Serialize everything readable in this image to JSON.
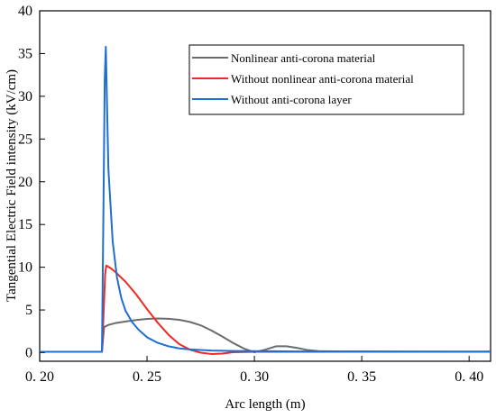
{
  "chart_data": {
    "type": "line",
    "title": "",
    "xlabel": "Arc length (m)",
    "ylabel": "Tangential Electric Field intensity (kV/cm)",
    "xlim": [
      0.2,
      0.41
    ],
    "ylim": [
      -1,
      40
    ],
    "xticks": [
      0.2,
      0.25,
      0.3,
      0.35,
      0.4
    ],
    "xtick_labels": [
      "0. 20",
      "0. 25",
      "0. 30",
      "0. 35",
      "0. 40"
    ],
    "yticks": [
      0,
      5,
      10,
      15,
      20,
      25,
      30,
      35,
      40
    ],
    "ytick_labels": [
      "0",
      "5",
      "10",
      "15",
      "20",
      "25",
      "30",
      "35",
      "40"
    ],
    "grid": false,
    "legend_position": "top-right",
    "series": [
      {
        "name": "Nonlinear anti-corona material",
        "color": "#6b6b6b",
        "x": [
          0.2,
          0.229,
          0.23,
          0.232,
          0.235,
          0.24,
          0.245,
          0.25,
          0.255,
          0.26,
          0.265,
          0.27,
          0.275,
          0.28,
          0.285,
          0.29,
          0.295,
          0.3,
          0.305,
          0.31,
          0.315,
          0.32,
          0.325,
          0.33,
          0.34,
          0.35,
          0.37,
          0.39,
          0.41
        ],
        "y": [
          0.1,
          0.1,
          3.0,
          3.25,
          3.45,
          3.65,
          3.82,
          3.95,
          4.0,
          3.97,
          3.85,
          3.6,
          3.2,
          2.6,
          1.9,
          1.15,
          0.5,
          0.05,
          0.35,
          0.75,
          0.75,
          0.55,
          0.3,
          0.18,
          0.15,
          0.15,
          0.13,
          0.12,
          0.12
        ]
      },
      {
        "name": "Without nonlinear anti-corona material",
        "color": "#ee2a24",
        "x": [
          0.2,
          0.229,
          0.2295,
          0.2305,
          0.231,
          0.233,
          0.235,
          0.24,
          0.245,
          0.25,
          0.255,
          0.26,
          0.265,
          0.27,
          0.275,
          0.28,
          0.285,
          0.29,
          0.3,
          0.31,
          0.32,
          0.33,
          0.34,
          0.36,
          0.38,
          0.41
        ],
        "y": [
          0.1,
          0.1,
          3.0,
          9.2,
          10.2,
          9.9,
          9.5,
          8.3,
          6.8,
          5.1,
          3.5,
          2.1,
          1.0,
          0.35,
          0.0,
          -0.15,
          -0.1,
          0.05,
          0.1,
          0.1,
          0.1,
          0.1,
          0.12,
          0.12,
          0.12,
          0.12
        ]
      },
      {
        "name": "Without anti-corona layer",
        "color": "#1f6fd1",
        "x": [
          0.2,
          0.229,
          0.2295,
          0.2303,
          0.2308,
          0.232,
          0.234,
          0.236,
          0.238,
          0.24,
          0.243,
          0.246,
          0.25,
          0.255,
          0.26,
          0.265,
          0.27,
          0.28,
          0.29,
          0.3,
          0.32,
          0.34,
          0.36,
          0.38,
          0.41
        ],
        "y": [
          0.1,
          0.1,
          12.0,
          32.0,
          35.8,
          21.5,
          13.0,
          8.8,
          6.4,
          4.9,
          3.6,
          2.7,
          1.8,
          1.15,
          0.75,
          0.5,
          0.38,
          0.25,
          0.2,
          0.18,
          0.15,
          0.13,
          0.12,
          0.12,
          0.12
        ]
      }
    ]
  }
}
